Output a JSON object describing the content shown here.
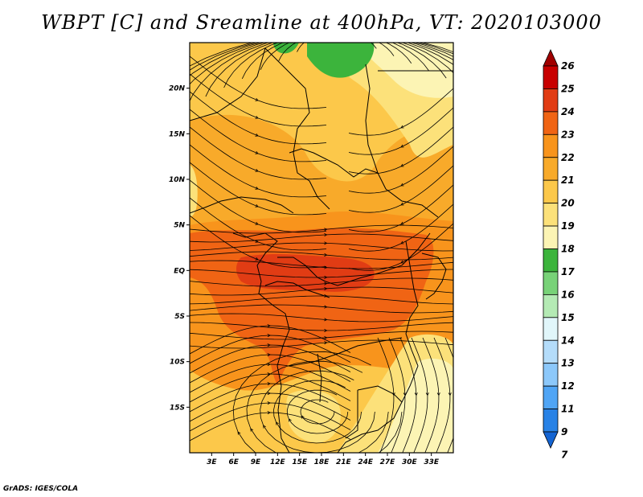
{
  "title": "WBPT [C] and Sreamline at 400hPa, VT: 2020103000",
  "credit": "GrADS: IGES/COLA",
  "map": {
    "lon_range": [
      0,
      36
    ],
    "lat_range": [
      -20,
      25
    ],
    "lat_ticks": [
      {
        "value": 20,
        "label": "20N"
      },
      {
        "value": 15,
        "label": "15N"
      },
      {
        "value": 10,
        "label": "10N"
      },
      {
        "value": 5,
        "label": "5N"
      },
      {
        "value": 0,
        "label": "EQ"
      },
      {
        "value": -5,
        "label": "5S"
      },
      {
        "value": -10,
        "label": "10S"
      },
      {
        "value": -15,
        "label": "15S"
      }
    ],
    "lon_ticks": [
      {
        "value": 3,
        "label": "3E"
      },
      {
        "value": 6,
        "label": "6E"
      },
      {
        "value": 9,
        "label": "9E"
      },
      {
        "value": 12,
        "label": "12E"
      },
      {
        "value": 15,
        "label": "15E"
      },
      {
        "value": 18,
        "label": "18E"
      },
      {
        "value": 21,
        "label": "21E"
      },
      {
        "value": 24,
        "label": "24E"
      },
      {
        "value": 27,
        "label": "27E"
      },
      {
        "value": 30,
        "label": "30E"
      },
      {
        "value": 33,
        "label": "33E"
      }
    ]
  },
  "colorbar": {
    "labels": [
      "26",
      "25",
      "24",
      "23",
      "22",
      "21",
      "20",
      "19",
      "18",
      "17",
      "16",
      "15",
      "14",
      "13",
      "12",
      "11",
      "9",
      "7"
    ],
    "colors": [
      "#a00000",
      "#c80000",
      "#e13c14",
      "#f06414",
      "#f8941c",
      "#f8aa2a",
      "#fcc84a",
      "#fce17a",
      "#fcf4b4",
      "#3cb43c",
      "#78d278",
      "#b4eab4",
      "#e1f6fa",
      "#b4dcfa",
      "#8cc8fa",
      "#50a5f5",
      "#2882e6",
      "#1464d2"
    ]
  },
  "colors": {
    "frame": "#000000",
    "streamline": "#000000",
    "border": "#000000"
  }
}
